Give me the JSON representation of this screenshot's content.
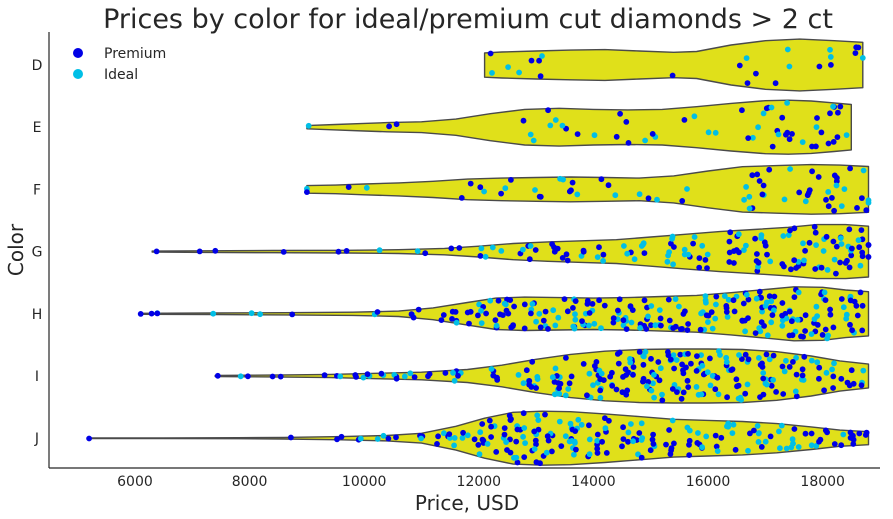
{
  "chart_data": {
    "type": "violin",
    "title": "Prices by color for ideal/premium cut diamonds > 2 ct",
    "xlabel": "Price, USD",
    "ylabel": "Color",
    "xlim": [
      4500,
      19000
    ],
    "x_ticks": [
      6000,
      8000,
      10000,
      12000,
      14000,
      16000,
      18000
    ],
    "x_tick_labels": [
      "6000",
      "8000",
      "10000",
      "12000",
      "14000",
      "16000",
      "18000"
    ],
    "categories": [
      "D",
      "E",
      "F",
      "G",
      "H",
      "I",
      "J"
    ],
    "violin_color": "#e0e01a",
    "violin_edge_color": "#4a4a4a",
    "grid": false,
    "legend": {
      "placement": "top-left"
    },
    "series": [
      {
        "name": "Premium",
        "color": "#0000e6"
      },
      {
        "name": "Ideal",
        "color": "#00bfe6"
      }
    ],
    "violins": [
      {
        "category": "D",
        "min": 12100,
        "max": 18700,
        "density": [
          [
            12100,
            0.45
          ],
          [
            12400,
            0.48
          ],
          [
            13000,
            0.52
          ],
          [
            13600,
            0.55
          ],
          [
            14200,
            0.57
          ],
          [
            14800,
            0.52
          ],
          [
            15400,
            0.47
          ],
          [
            15800,
            0.5
          ],
          [
            16400,
            0.74
          ],
          [
            17000,
            0.9
          ],
          [
            17600,
            0.96
          ],
          [
            18200,
            0.9
          ],
          [
            18700,
            0.84
          ]
        ],
        "clusters": [
          [
            12400,
            3
          ],
          [
            12800,
            2
          ],
          [
            13200,
            3
          ],
          [
            15200,
            1
          ],
          [
            16500,
            3
          ],
          [
            17000,
            2
          ],
          [
            17500,
            2
          ],
          [
            18100,
            4
          ],
          [
            18600,
            4
          ]
        ]
      },
      {
        "category": "E",
        "min": 9000,
        "max": 18500,
        "density": [
          [
            9000,
            0.06
          ],
          [
            9500,
            0.1
          ],
          [
            10000,
            0.14
          ],
          [
            10400,
            0.17
          ],
          [
            11000,
            0.2
          ],
          [
            11600,
            0.3
          ],
          [
            12200,
            0.5
          ],
          [
            12800,
            0.66
          ],
          [
            13400,
            0.7
          ],
          [
            14000,
            0.66
          ],
          [
            14600,
            0.64
          ],
          [
            15200,
            0.66
          ],
          [
            15800,
            0.76
          ],
          [
            16400,
            0.88
          ],
          [
            17000,
            0.98
          ],
          [
            17400,
            1.0
          ],
          [
            17800,
            0.97
          ],
          [
            18200,
            0.9
          ],
          [
            18500,
            0.84
          ]
        ],
        "clusters": [
          [
            9000,
            1
          ],
          [
            10400,
            2
          ],
          [
            12900,
            3
          ],
          [
            13400,
            5
          ],
          [
            13900,
            2
          ],
          [
            14500,
            4
          ],
          [
            15100,
            3
          ],
          [
            15600,
            2
          ],
          [
            16000,
            2
          ],
          [
            16800,
            5
          ],
          [
            17200,
            10
          ],
          [
            17500,
            3
          ],
          [
            17800,
            4
          ],
          [
            18100,
            7
          ],
          [
            18400,
            3
          ]
        ]
      },
      {
        "category": "F",
        "min": 9000,
        "max": 18800,
        "density": [
          [
            9000,
            0.14
          ],
          [
            9500,
            0.16
          ],
          [
            10000,
            0.2
          ],
          [
            10600,
            0.24
          ],
          [
            11200,
            0.3
          ],
          [
            11800,
            0.38
          ],
          [
            12400,
            0.42
          ],
          [
            13000,
            0.44
          ],
          [
            13600,
            0.46
          ],
          [
            14200,
            0.44
          ],
          [
            14800,
            0.42
          ],
          [
            15400,
            0.5
          ],
          [
            16000,
            0.68
          ],
          [
            16600,
            0.84
          ],
          [
            17200,
            0.88
          ],
          [
            17800,
            0.92
          ],
          [
            18300,
            0.9
          ],
          [
            18800,
            0.85
          ]
        ],
        "clusters": [
          [
            9000,
            2
          ],
          [
            9900,
            2
          ],
          [
            11900,
            4
          ],
          [
            12500,
            3
          ],
          [
            13100,
            3
          ],
          [
            13600,
            6
          ],
          [
            14300,
            3
          ],
          [
            15000,
            3
          ],
          [
            15700,
            2
          ],
          [
            16700,
            8
          ],
          [
            17000,
            4
          ],
          [
            17400,
            3
          ],
          [
            17900,
            8
          ],
          [
            18300,
            10
          ],
          [
            18700,
            6
          ]
        ]
      },
      {
        "category": "G",
        "min": 6300,
        "max": 18800,
        "density": [
          [
            6300,
            0.02
          ],
          [
            7200,
            0.03
          ],
          [
            8400,
            0.04
          ],
          [
            9700,
            0.05
          ],
          [
            10600,
            0.07
          ],
          [
            11400,
            0.12
          ],
          [
            12000,
            0.2
          ],
          [
            12600,
            0.3
          ],
          [
            13200,
            0.36
          ],
          [
            13800,
            0.4
          ],
          [
            14400,
            0.44
          ],
          [
            15000,
            0.54
          ],
          [
            15600,
            0.64
          ],
          [
            16200,
            0.74
          ],
          [
            16800,
            0.82
          ],
          [
            17400,
            0.9
          ],
          [
            17900,
            1.0
          ],
          [
            18400,
            1.0
          ],
          [
            18800,
            0.94
          ]
        ],
        "clusters": [
          [
            6400,
            1
          ],
          [
            7200,
            1
          ],
          [
            7500,
            1
          ],
          [
            8400,
            1
          ],
          [
            9700,
            2
          ],
          [
            10300,
            1
          ],
          [
            11100,
            2
          ],
          [
            11700,
            2
          ],
          [
            12200,
            5
          ],
          [
            12800,
            6
          ],
          [
            13400,
            7
          ],
          [
            14000,
            7
          ],
          [
            14700,
            8
          ],
          [
            15200,
            8
          ],
          [
            15800,
            12
          ],
          [
            16500,
            12
          ],
          [
            17000,
            12
          ],
          [
            17500,
            14
          ],
          [
            17900,
            12
          ],
          [
            18300,
            14
          ],
          [
            18700,
            12
          ]
        ]
      },
      {
        "category": "H",
        "min": 6100,
        "max": 18800,
        "density": [
          [
            6100,
            0.02
          ],
          [
            7400,
            0.03
          ],
          [
            8600,
            0.04
          ],
          [
            9800,
            0.06
          ],
          [
            10600,
            0.1
          ],
          [
            11200,
            0.22
          ],
          [
            11800,
            0.42
          ],
          [
            12300,
            0.58
          ],
          [
            12800,
            0.62
          ],
          [
            13400,
            0.6
          ],
          [
            14000,
            0.58
          ],
          [
            14600,
            0.6
          ],
          [
            15200,
            0.64
          ],
          [
            15800,
            0.68
          ],
          [
            16400,
            0.78
          ],
          [
            17000,
            0.9
          ],
          [
            17500,
            1.0
          ],
          [
            18000,
            0.98
          ],
          [
            18400,
            0.88
          ],
          [
            18800,
            0.82
          ]
        ],
        "clusters": [
          [
            6200,
            3
          ],
          [
            6400,
            1
          ],
          [
            7400,
            1
          ],
          [
            8200,
            2
          ],
          [
            8600,
            1
          ],
          [
            10300,
            2
          ],
          [
            11000,
            4
          ],
          [
            11500,
            7
          ],
          [
            12000,
            10
          ],
          [
            12500,
            16
          ],
          [
            13000,
            13
          ],
          [
            13500,
            13
          ],
          [
            14000,
            14
          ],
          [
            14500,
            15
          ],
          [
            15000,
            15
          ],
          [
            15500,
            13
          ],
          [
            16000,
            15
          ],
          [
            16500,
            18
          ],
          [
            17000,
            22
          ],
          [
            17500,
            22
          ],
          [
            18000,
            19
          ],
          [
            18500,
            16
          ]
        ]
      },
      {
        "category": "I",
        "min": 7400,
        "max": 18800,
        "density": [
          [
            7400,
            0.02
          ],
          [
            8000,
            0.03
          ],
          [
            8600,
            0.04
          ],
          [
            9400,
            0.06
          ],
          [
            10200,
            0.1
          ],
          [
            11000,
            0.14
          ],
          [
            11800,
            0.24
          ],
          [
            12400,
            0.4
          ],
          [
            13000,
            0.62
          ],
          [
            13600,
            0.8
          ],
          [
            14200,
            0.92
          ],
          [
            14800,
            0.98
          ],
          [
            15400,
            1.0
          ],
          [
            16000,
            1.0
          ],
          [
            16600,
            0.98
          ],
          [
            17200,
            0.9
          ],
          [
            17800,
            0.74
          ],
          [
            18300,
            0.56
          ],
          [
            18800,
            0.44
          ]
        ],
        "clusters": [
          [
            7400,
            1
          ],
          [
            8000,
            2
          ],
          [
            8400,
            2
          ],
          [
            9400,
            3
          ],
          [
            9900,
            5
          ],
          [
            10500,
            6
          ],
          [
            11000,
            4
          ],
          [
            11600,
            6
          ],
          [
            12300,
            7
          ],
          [
            12900,
            12
          ],
          [
            13500,
            16
          ],
          [
            14000,
            18
          ],
          [
            14500,
            22
          ],
          [
            15000,
            22
          ],
          [
            15500,
            24
          ],
          [
            16000,
            22
          ],
          [
            16500,
            20
          ],
          [
            17000,
            18
          ],
          [
            17500,
            15
          ],
          [
            18000,
            10
          ],
          [
            18500,
            8
          ]
        ]
      },
      {
        "category": "J",
        "min": 5200,
        "max": 18800,
        "density": [
          [
            5200,
            0.01
          ],
          [
            6500,
            0.01
          ],
          [
            7800,
            0.02
          ],
          [
            8600,
            0.03
          ],
          [
            9600,
            0.06
          ],
          [
            10400,
            0.1
          ],
          [
            11000,
            0.18
          ],
          [
            11600,
            0.44
          ],
          [
            12100,
            0.74
          ],
          [
            12600,
            0.96
          ],
          [
            13100,
            1.0
          ],
          [
            13600,
            0.98
          ],
          [
            14200,
            0.9
          ],
          [
            14800,
            0.8
          ],
          [
            15400,
            0.7
          ],
          [
            16000,
            0.66
          ],
          [
            16600,
            0.62
          ],
          [
            17200,
            0.54
          ],
          [
            17800,
            0.42
          ],
          [
            18300,
            0.3
          ],
          [
            18800,
            0.24
          ]
        ],
        "clusters": [
          [
            5200,
            1
          ],
          [
            8600,
            1
          ],
          [
            9600,
            2
          ],
          [
            10100,
            3
          ],
          [
            10500,
            3
          ],
          [
            11100,
            5
          ],
          [
            11600,
            9
          ],
          [
            12100,
            14
          ],
          [
            12600,
            22
          ],
          [
            13100,
            20
          ],
          [
            13600,
            18
          ],
          [
            14100,
            16
          ],
          [
            14700,
            15
          ],
          [
            15200,
            12
          ],
          [
            15800,
            12
          ],
          [
            16300,
            10
          ],
          [
            16900,
            10
          ],
          [
            17400,
            9
          ],
          [
            17900,
            8
          ],
          [
            18400,
            7
          ],
          [
            18700,
            4
          ]
        ]
      }
    ]
  }
}
